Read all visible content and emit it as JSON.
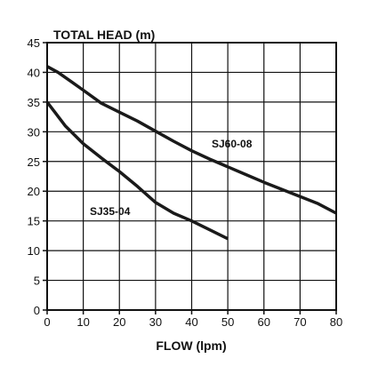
{
  "chart_data": {
    "type": "line",
    "title": "",
    "xlabel": "FLOW (lpm)",
    "ylabel": "TOTAL HEAD (m)",
    "xlim": [
      0,
      80
    ],
    "ylim": [
      0,
      45
    ],
    "xticks": [
      0,
      10,
      20,
      30,
      40,
      50,
      60,
      70,
      80
    ],
    "yticks": [
      0,
      5,
      10,
      15,
      20,
      25,
      30,
      35,
      40,
      45
    ],
    "grid": true,
    "legend": "none",
    "series": [
      {
        "name": "SJ60-08",
        "color": "#1a1a1a",
        "x": [
          0,
          3,
          7,
          10,
          15,
          20,
          25,
          30,
          35,
          40,
          45,
          50,
          55,
          60,
          65,
          70,
          75,
          80
        ],
        "y": [
          41,
          40,
          38.3,
          37,
          34.8,
          33.3,
          31.8,
          30.1,
          28.4,
          26.8,
          25.4,
          24.1,
          22.8,
          21.5,
          20.3,
          19.1,
          17.9,
          16.3
        ]
      },
      {
        "name": "SJ35-04",
        "color": "#1a1a1a",
        "x": [
          0,
          3,
          5,
          10,
          15,
          20,
          25,
          30,
          35,
          40,
          45,
          50
        ],
        "y": [
          35,
          32.6,
          31,
          28,
          25.6,
          23.3,
          20.8,
          18.1,
          16.3,
          15,
          13.5,
          12
        ]
      }
    ]
  }
}
